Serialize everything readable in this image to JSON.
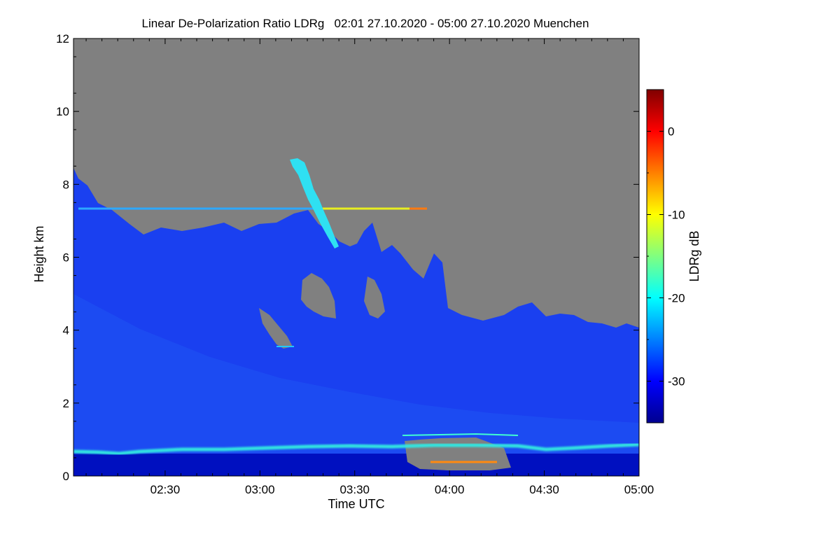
{
  "chart_data": {
    "type": "heatmap",
    "title": "Linear De-Polarization Ratio LDRg   02:01 27.10.2020 - 05:00 27.10.2020 Muenchen",
    "xlabel": "Time UTC",
    "ylabel": "Height km",
    "x_range": [
      "02:01",
      "05:00"
    ],
    "x_ticks": [
      "02:30",
      "03:00",
      "03:30",
      "04:00",
      "04:30",
      "05:00"
    ],
    "ylim": [
      0,
      12
    ],
    "y_ticks": [
      0,
      2,
      4,
      6,
      8,
      10,
      12
    ],
    "colorbar": {
      "label": "LDRg dB",
      "range": [
        -35,
        5
      ],
      "ticks": [
        0,
        -10,
        -20,
        -30
      ],
      "colormap": [
        "#00008f",
        "#0000ff",
        "#0080ff",
        "#00ffff",
        "#80ff80",
        "#ffff00",
        "#ff8000",
        "#ff0000",
        "#800000"
      ]
    },
    "no_data_color": "#808080",
    "features": [
      {
        "label": "cloud layer",
        "x_start": "02:01",
        "x_end": "05:00",
        "height_km": [
          0.3,
          8.3
        ],
        "ldr_db": -30
      },
      {
        "label": "boundary layer line",
        "x_start": "02:01",
        "x_end": "05:00",
        "height_km": 0.6,
        "ldr_db": -20
      },
      {
        "label": "thin layer",
        "x_start": "02:01",
        "x_end": "03:48",
        "height_km": 7.3,
        "ldr_db": -12
      },
      {
        "label": "fall streak",
        "x_start": "03:13",
        "x_end": "03:24",
        "height_km": [
          6.2,
          8.6
        ],
        "ldr_db": -22
      }
    ]
  }
}
